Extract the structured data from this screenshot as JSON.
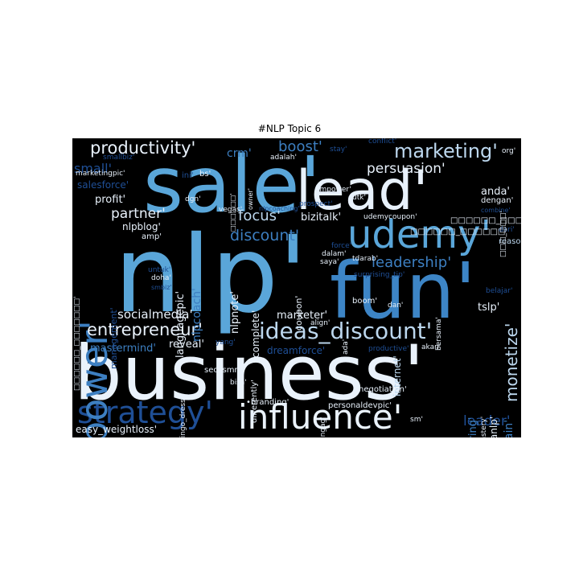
{
  "title": "#NLP Topic 6",
  "colors": {
    "background": "#000000",
    "lightest": "#e8f1fb",
    "light": "#bcd7ee",
    "mid": "#5aa6d9",
    "dark": "#3d7fc1",
    "darker": "#1f4f96",
    "darkest": "#163e80"
  },
  "words": {
    "business": "business'",
    "nlp": "nlp'",
    "sale": "sale'",
    "lead": "lead'",
    "fun": "fun'",
    "udemy": "udemy'",
    "influence": "influence'",
    "strategy": "strategy'",
    "power": "power'",
    "ideas_discount": "ideas_discount'",
    "entrepreneur": "entrepreneur'",
    "productivity": "productivity'",
    "marketing": "marketing'",
    "boost": "boost'",
    "persuasion": "persuasion'",
    "discount": "discount'",
    "focus": "focus'",
    "partner": "partner'",
    "leadership": "leadership'",
    "monetize": "monetize'",
    "socialmedia": "socialmedia'",
    "small": "small'",
    "salesforce": "salesforce'",
    "profit": "profit'",
    "crm": "crm'",
    "nlpblog": "nlpblog'",
    "amp": "amp'",
    "bizitalk": "bizitalk'",
    "languagepic": "languagepic'",
    "nlpcoach": "nlpcoach'",
    "nlpnote": "nlpnote'",
    "complete": "complete'",
    "marketer": "marketer'",
    "reveal": "reveal'",
    "mastermind": "mastermind'",
    "dreamforce": "dreamforce'",
    "internet": "internet'",
    "tslp": "tslp'",
    "leader": "leader'",
    "nlptrain": "_nlptrain'",
    "nadianlp": "nadianlp'",
    "inspiring": "inspiring'",
    "easy_weightloss": "easy_weightloss'",
    "coupon": "coupon'",
    "anda": "anda'",
    "ini": "ini'",
    "bs": "bs'",
    "management": "management'",
    "negotiation": "negotiation'",
    "boom": "boom'",
    "dan": "dan'",
    "udemycoupon": "udemycoupon'",
    "saya": "saya'",
    "reason": "reason'",
    "dari": "dari'",
    "dengan": "dengan'",
    "empower": "empower'",
    "adalah": "adalah'",
    "stay": "stay'",
    "conflict": "conflict'",
    "vegas": "vegas'",
    "marketingpic": "marketingpic'",
    "smallbiz": "smallbiz'",
    "doha": "doha'",
    "force": "force'",
    "dalam": "dalam'",
    "tdarab": "tdarab'",
    "akan": "akan'",
    "productive": "productive'",
    "personaldevpic": "personaldevpic'",
    "branding": "•branding'",
    "five_engag": "five_engag'",
    "bisa": "bisa'",
    "seo_smm": "seo_smm'",
    "bingo_dress": "bingo_dress'",
    "yang": "yang'",
    "differently": "differently'",
    "belajar": "belajar'",
    "bersama": "bersama'",
    "sm": "sm'",
    "mindmastery": "mindmastery'",
    "surprising_tip": "surprising_tip'",
    "ada": "ada'",
    "align": "align'",
    "untuk": "untuk'",
    "utk": "utk'",
    "prospect": "prospect'",
    "owner": "owner'",
    "org": "org'",
    "combine": "combine'",
    "smbiz": "smbiz'",
    "dgn": "dgn'",
    "nlpcoaching": "nlpcoaching'",
    "boxes1": "□□□□□□_□□□□□□□'",
    "boxes2": "□□□□□□_□□□□□'",
    "boxes3": "□□□□□□_□□□□□□'",
    "boxes4": "□□□_□□□'",
    "boxes5": "□□□□□□'"
  }
}
